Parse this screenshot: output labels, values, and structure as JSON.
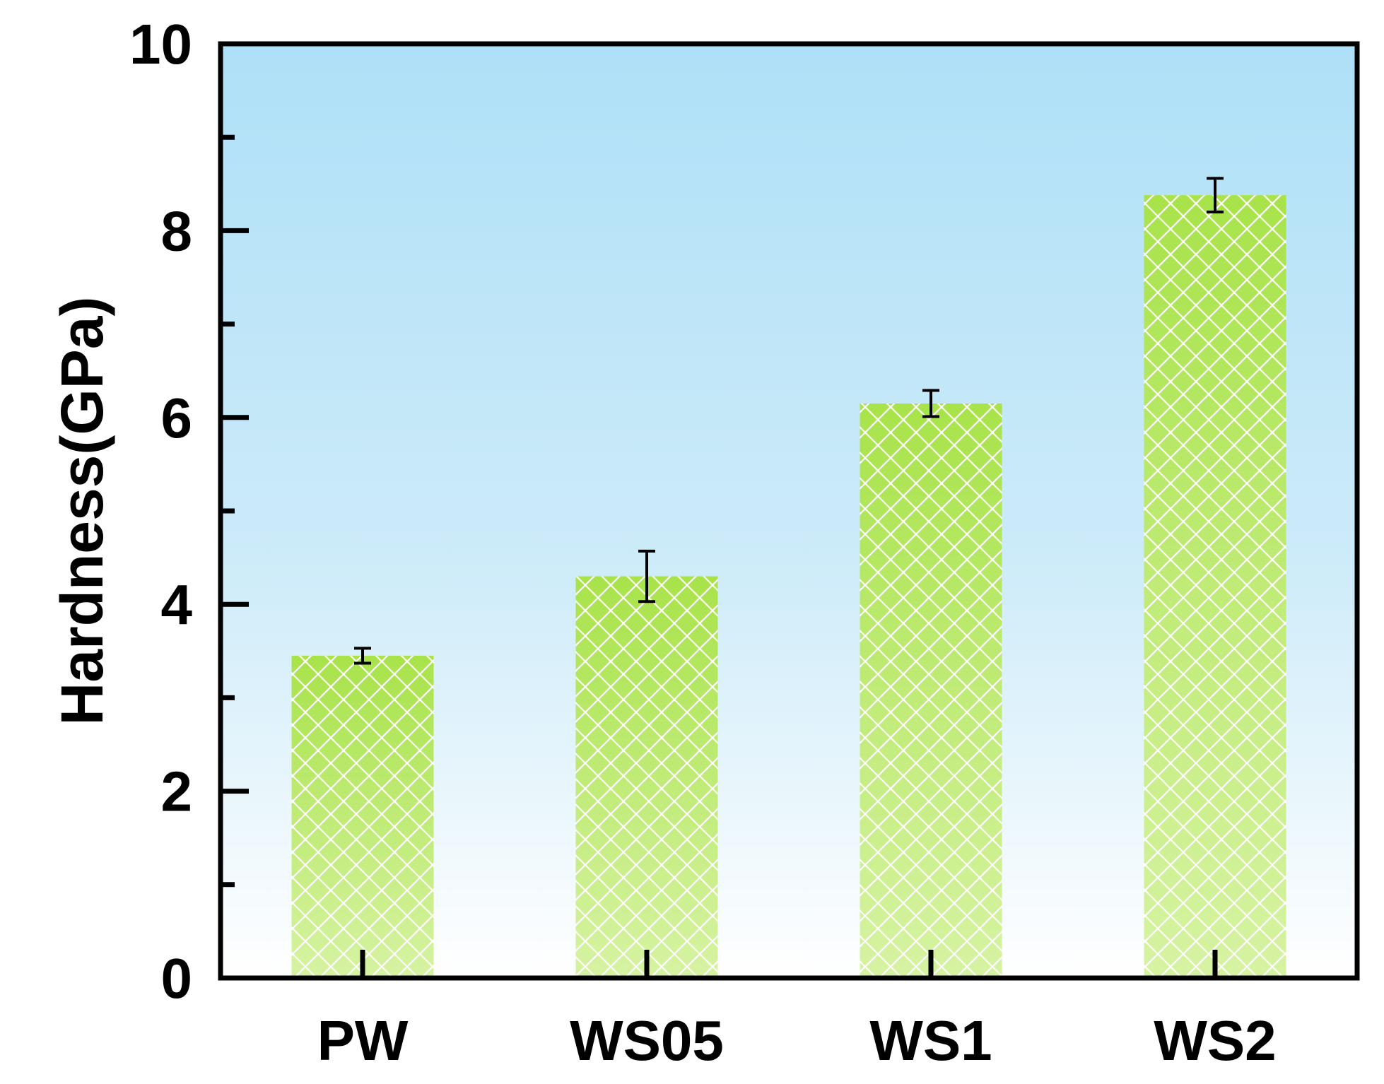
{
  "chart_data": {
    "type": "bar",
    "title": "",
    "xlabel": "",
    "ylabel": "Hardness(GPa)",
    "categories": [
      "PW",
      "WS05",
      "WS1",
      "WS2"
    ],
    "values": [
      3.45,
      4.3,
      6.15,
      8.38
    ],
    "errors": [
      0.08,
      0.27,
      0.14,
      0.18
    ],
    "ylim": [
      0,
      10
    ],
    "yticks": [
      "0",
      "2",
      "4",
      "6",
      "8",
      "10"
    ],
    "grid": false,
    "legend": "none",
    "colors": {
      "bar_top": "#a8e34a",
      "bar_bottom": "#d6f3a2",
      "hatch": "#ffffff",
      "background_top": "#aee0f7",
      "background_bottom": "#ffffff",
      "axis": "#000000",
      "error_bar": "#000000"
    }
  }
}
